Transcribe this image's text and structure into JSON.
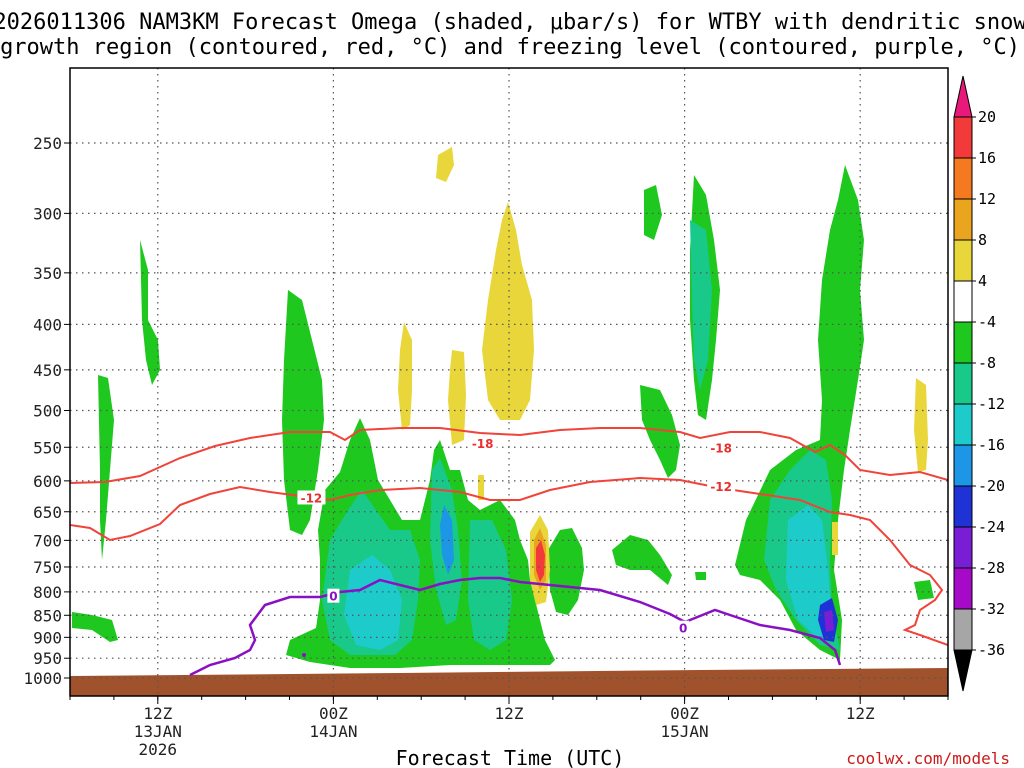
{
  "title": {
    "line1": "2026011306 NAM3KM Forecast Omega (shaded, μbar/s) for WTBY with dendritic snow",
    "line2": "growth region (contoured, red, °C) and freezing level (contoured, purple, °C)"
  },
  "credit": "coolwx.com/models",
  "chart_data": {
    "type": "heatmap",
    "title": "2026011306 NAM3KM Forecast Omega (shaded, μbar/s) for WTBY with dendritic snow growth region (contoured, red, °C) and freezing level (contoured, purple, °C)",
    "xlabel": "Forecast Time (UTC)",
    "ylabel": "",
    "x_ticks": [
      {
        "label": "12Z",
        "sub1": "13JAN",
        "sub2": "2026",
        "hour": 6
      },
      {
        "label": "00Z",
        "sub1": "14JAN",
        "sub2": "",
        "hour": 18
      },
      {
        "label": "12Z",
        "sub1": "",
        "sub2": "",
        "hour": 30
      },
      {
        "label": "00Z",
        "sub1": "15JAN",
        "sub2": "",
        "hour": 42
      },
      {
        "label": "12Z",
        "sub1": "",
        "sub2": "",
        "hour": 54
      }
    ],
    "xlim": [
      0,
      60
    ],
    "y_ticks": [
      250,
      300,
      350,
      400,
      450,
      500,
      550,
      600,
      650,
      700,
      750,
      800,
      850,
      900,
      950,
      1000
    ],
    "ylim": [
      1050,
      200
    ],
    "y_scale": "log",
    "grid": true,
    "colorbar": {
      "ticks": [
        20,
        16,
        12,
        8,
        4,
        -4,
        -8,
        -12,
        -16,
        -20,
        -24,
        -28,
        -32,
        -36
      ],
      "colors": [
        "#e8197a",
        "#f23a3a",
        "#f57a1f",
        "#eaa51f",
        "#e8d63a",
        "#ffffff",
        "#1ec81e",
        "#19c98a",
        "#1ecbcb",
        "#1e96e6",
        "#1e32d6",
        "#7a1ed6",
        "#a60ac8",
        "#a6a6a6",
        "#000000"
      ]
    },
    "contours": [
      {
        "name": "-18",
        "color": "#f0433a",
        "label_positions": [
          {
            "hour": 28.2,
            "pres": 545
          },
          {
            "hour": 44.5,
            "pres": 552
          }
        ]
      },
      {
        "name": "-12",
        "color": "#f0433a",
        "label_positions": [
          {
            "hour": 16.5,
            "pres": 628
          },
          {
            "hour": 44.5,
            "pres": 610
          }
        ]
      },
      {
        "name": "0",
        "color": "#8a10c4",
        "label_positions": [
          {
            "hour": 18.0,
            "pres": 810
          },
          {
            "hour": 41.9,
            "pres": 880
          }
        ]
      }
    ]
  }
}
